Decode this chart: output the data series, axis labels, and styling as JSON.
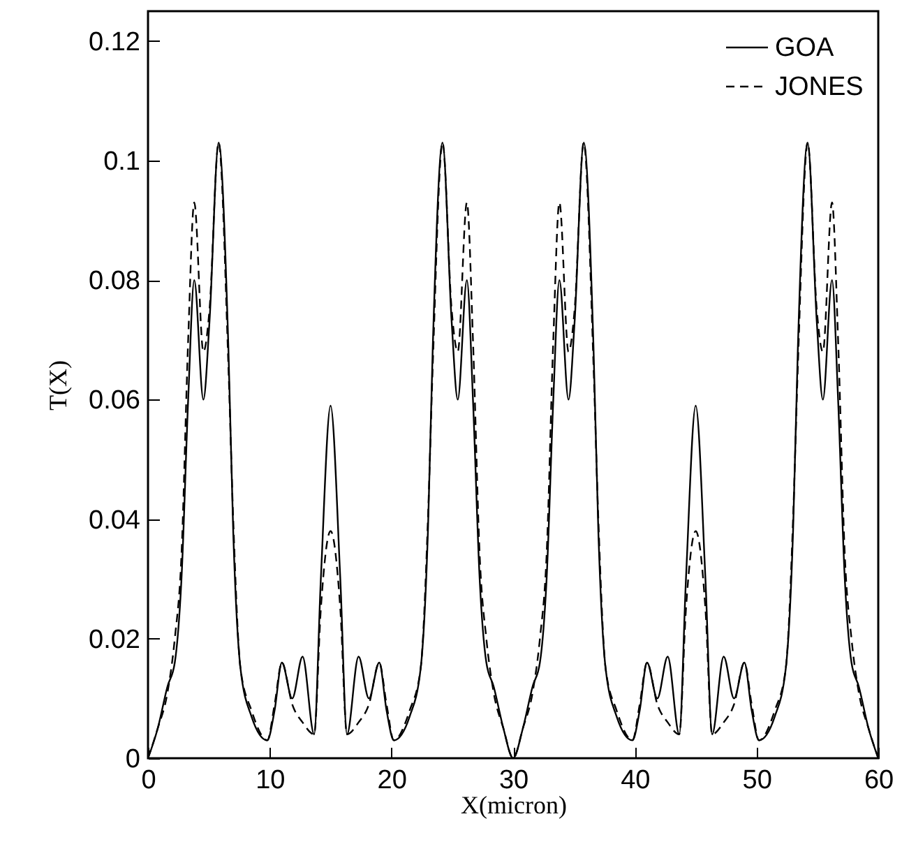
{
  "chart_data": {
    "type": "line",
    "xlabel": "X(micron)",
    "ylabel": "T(X)",
    "x": [
      0,
      0.8,
      1.6,
      2.2,
      2.75,
      3.3,
      3.8,
      4.55,
      5.05,
      5.8,
      6.6,
      7,
      7.6,
      8.5,
      9.8,
      10.4,
      11,
      11.85,
      12.7,
      13.65,
      14.2,
      15,
      15.8,
      16.35,
      17.3,
      18.15,
      19,
      19.6,
      20.2,
      21.5,
      22.4,
      23,
      23.4,
      24.2,
      24.95,
      25.45,
      26.2,
      26.7,
      27.25,
      27.8,
      28.4,
      29.2,
      30,
      30.8,
      31.6,
      32.2,
      32.75,
      33.3,
      33.8,
      34.55,
      35.05,
      35.8,
      36.6,
      37,
      37.6,
      38.5,
      39.8,
      40.4,
      41,
      41.85,
      42.7,
      43.65,
      44.2,
      45,
      45.8,
      46.35,
      47.3,
      48.15,
      49,
      49.6,
      50.2,
      51.5,
      52.4,
      53,
      53.4,
      54.2,
      54.95,
      55.45,
      56.2,
      56.7,
      57.25,
      57.8,
      58.4,
      59.2,
      60
    ],
    "series": [
      {
        "name": "GOA",
        "color": "#000000",
        "line_style": "solid",
        "values": [
          0,
          0.005,
          0.012,
          0.016,
          0.03,
          0.06,
          0.08,
          0.06,
          0.073,
          0.103,
          0.069,
          0.038,
          0.015,
          0.007,
          0.003,
          0.008,
          0.016,
          0.01,
          0.017,
          0.004,
          0.03,
          0.059,
          0.03,
          0.004,
          0.017,
          0.01,
          0.016,
          0.008,
          0.003,
          0.007,
          0.015,
          0.038,
          0.069,
          0.103,
          0.073,
          0.06,
          0.08,
          0.06,
          0.03,
          0.016,
          0.012,
          0.005,
          0,
          0.005,
          0.012,
          0.016,
          0.03,
          0.06,
          0.08,
          0.06,
          0.073,
          0.103,
          0.069,
          0.038,
          0.015,
          0.007,
          0.003,
          0.008,
          0.016,
          0.01,
          0.017,
          0.004,
          0.03,
          0.059,
          0.03,
          0.004,
          0.017,
          0.01,
          0.016,
          0.008,
          0.003,
          0.007,
          0.015,
          0.038,
          0.069,
          0.103,
          0.073,
          0.06,
          0.08,
          0.06,
          0.03,
          0.016,
          0.012,
          0.005,
          0
        ]
      },
      {
        "name": "JONES",
        "color": "#000000",
        "line_style": "dashed",
        "values": [
          0,
          0.005,
          0.011,
          0.02,
          0.034,
          0.07,
          0.093,
          0.068,
          0.075,
          0.103,
          0.066,
          0.04,
          0.015,
          0.008,
          0.003,
          0.009,
          0.016,
          0.009,
          0.006,
          0.004,
          0.025,
          0.038,
          0.025,
          0.004,
          0.006,
          0.009,
          0.016,
          0.009,
          0.003,
          0.008,
          0.015,
          0.04,
          0.066,
          0.103,
          0.075,
          0.068,
          0.093,
          0.07,
          0.034,
          0.02,
          0.011,
          0.005,
          0,
          0.005,
          0.011,
          0.02,
          0.034,
          0.07,
          0.093,
          0.068,
          0.075,
          0.103,
          0.066,
          0.04,
          0.015,
          0.008,
          0.003,
          0.009,
          0.016,
          0.009,
          0.006,
          0.004,
          0.025,
          0.038,
          0.025,
          0.004,
          0.006,
          0.009,
          0.016,
          0.009,
          0.003,
          0.008,
          0.015,
          0.04,
          0.066,
          0.103,
          0.075,
          0.068,
          0.093,
          0.07,
          0.034,
          0.02,
          0.011,
          0.005,
          0
        ]
      }
    ],
    "xlim": [
      0,
      60
    ],
    "xticks": [
      0,
      10,
      20,
      30,
      40,
      50,
      60
    ],
    "ylim": [
      0,
      0.125
    ],
    "yticks": [
      0,
      0.02,
      0.04,
      0.06,
      0.08,
      0.1,
      0.12
    ],
    "grid": false,
    "legend": "top right"
  }
}
